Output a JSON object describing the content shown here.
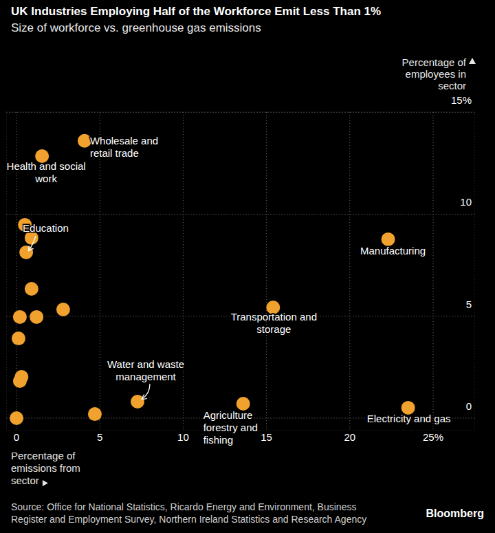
{
  "chart_data": {
    "type": "scatter",
    "title": "UK Industries Employing Half of the Workforce Emit Less Than 1%",
    "subtitle": "Size of workforce vs. greenhouse gas emissions",
    "x_label": "Percentage of emissions from sector",
    "y_label": "Percentage of employees in sector",
    "x": [
      4.08,
      1.53,
      0.5,
      0.9,
      0.58,
      22.3,
      0.9,
      2.8,
      15.4,
      0.2,
      1.2,
      0.12,
      0.3,
      0.2,
      7.26,
      13.6,
      23.5,
      0,
      4.7
    ],
    "values": [
      13.6,
      12.85,
      9.48,
      8.84,
      8.13,
      8.77,
      6.34,
      5.33,
      5.43,
      4.96,
      4.96,
      3.91,
      2.02,
      1.82,
      0.81,
      0.71,
      0.51,
      0,
      0.2
    ],
    "labels": [
      "Wholesale and retail trade",
      "Health and social work",
      null,
      null,
      "Education",
      "Manufacturing",
      null,
      null,
      "Transportation and storage",
      null,
      null,
      null,
      null,
      null,
      "Water and waste management",
      "Agriculture forestry and fishing",
      "Electricity and gas",
      null,
      null
    ],
    "color": "#f0a12e",
    "marker": "circle",
    "xlim": [
      -0.6,
      27.5
    ],
    "ylim": [
      -0.6,
      15
    ],
    "xticks": [
      0,
      5,
      10,
      15,
      20,
      {
        "value": 25,
        "label": "25%"
      }
    ],
    "yticks": [
      0,
      5,
      10,
      {
        "value": 15,
        "label": "15%"
      }
    ],
    "grid": true,
    "source": "Source: Office for National Statistics, Ricardo Energy and Environment, Business Register and Employment Survey, Northern Ireland Statistics and Research Agency",
    "credit": "Bloomberg"
  }
}
